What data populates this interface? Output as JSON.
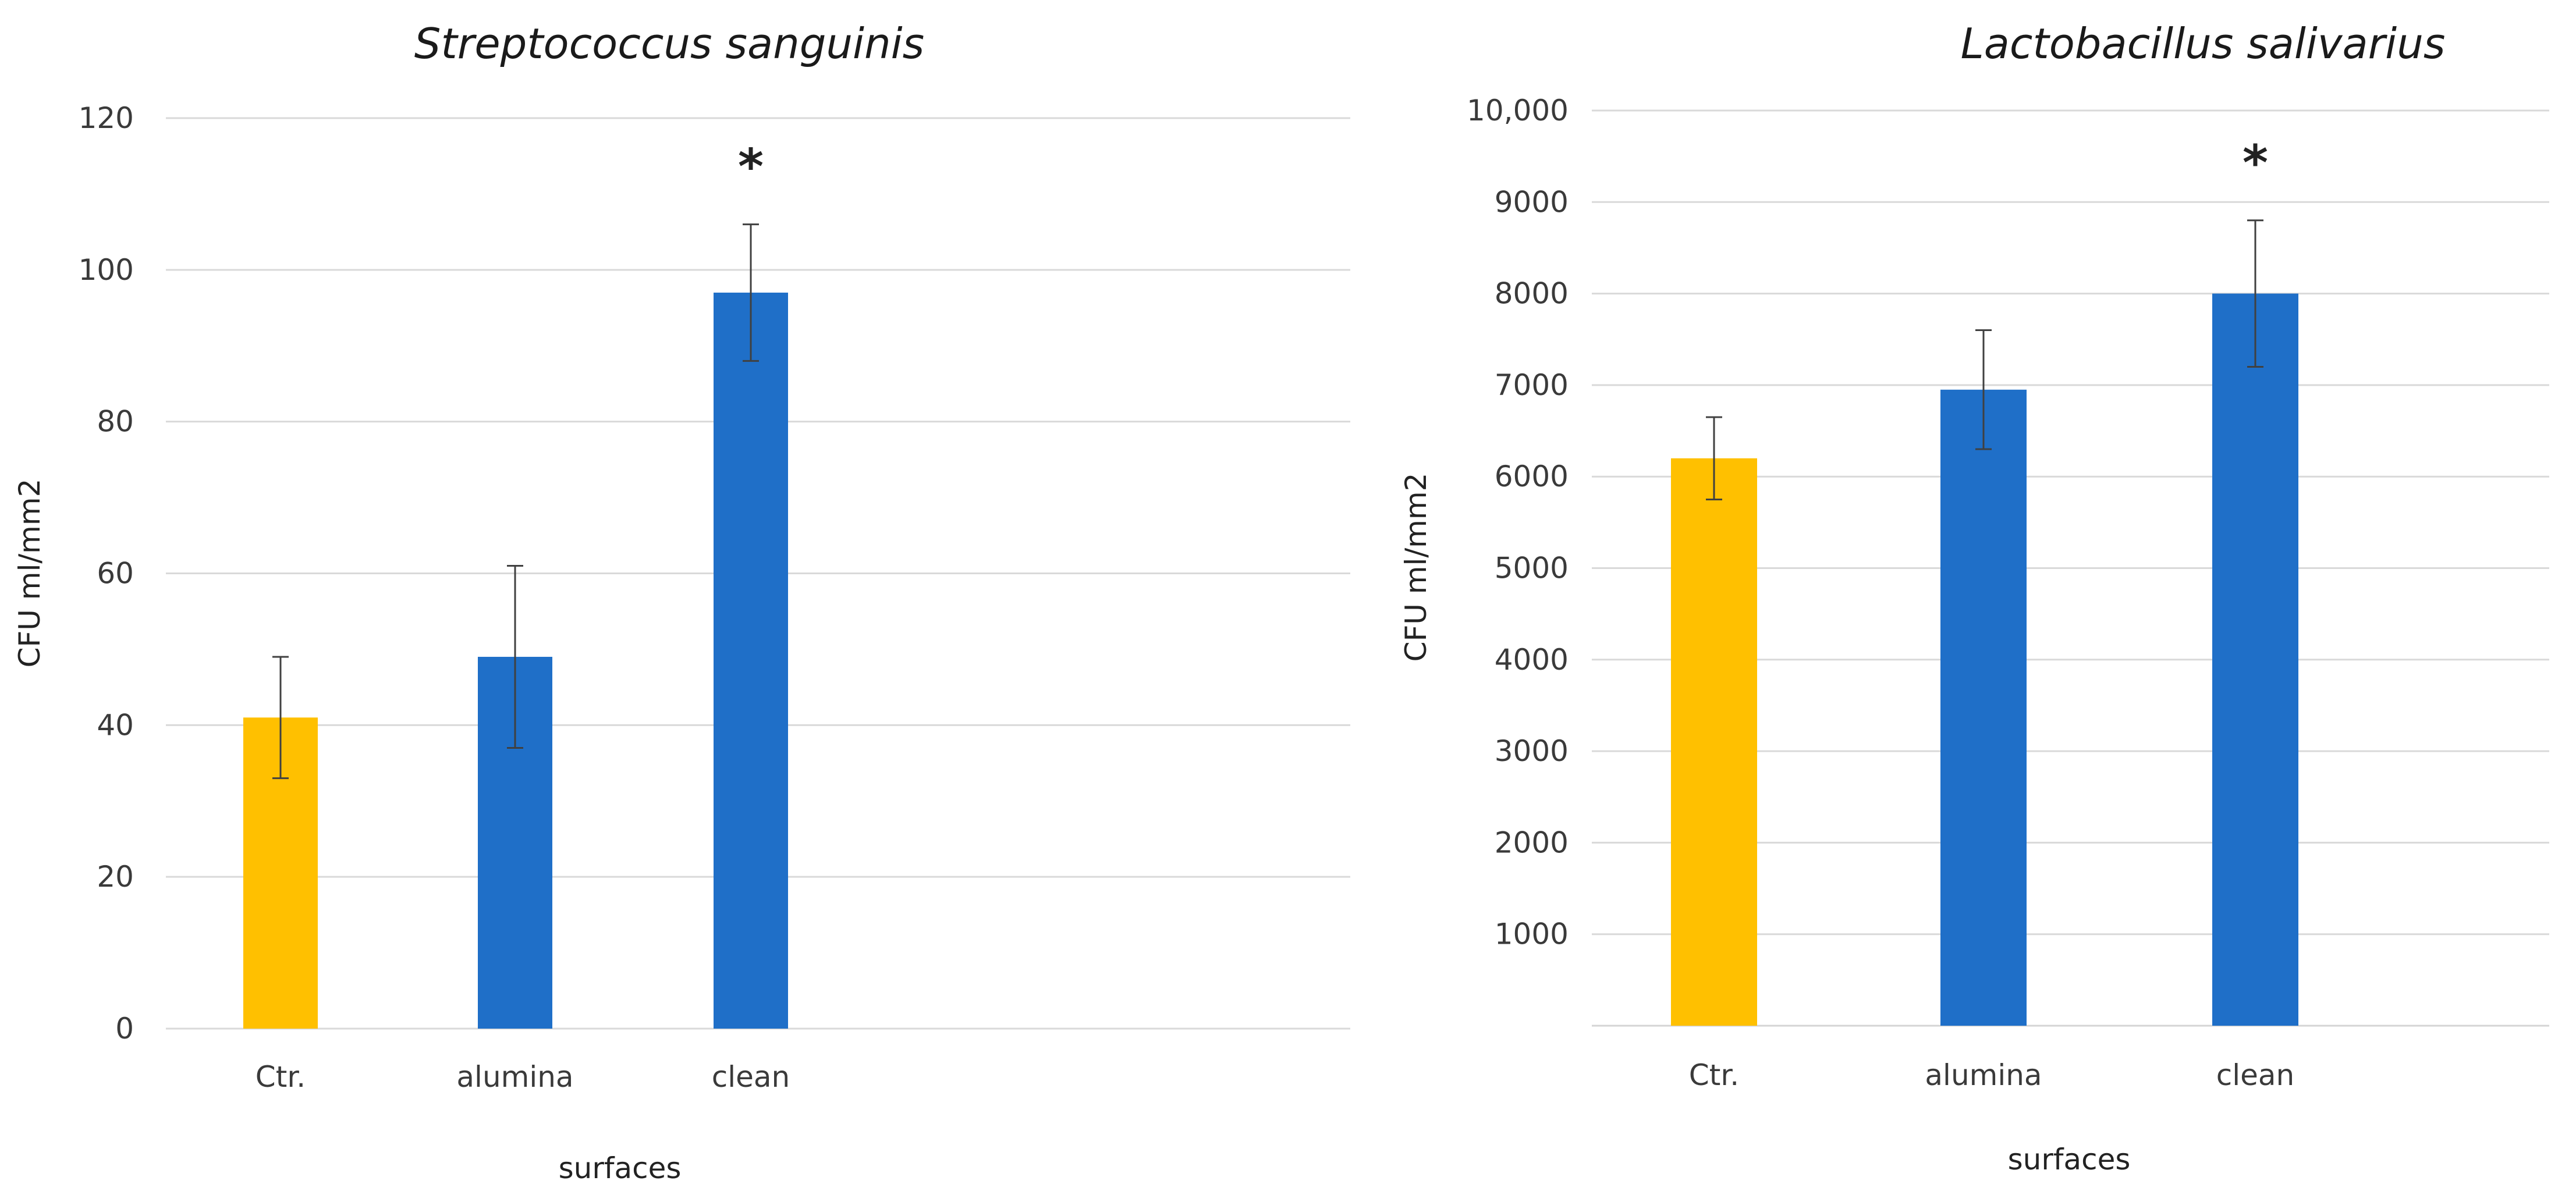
{
  "chart_data": [
    {
      "type": "bar",
      "title": "Streptococcus sanguinis",
      "xlabel": "surfaces",
      "ylabel": "CFU ml/mm2",
      "categories": [
        "Ctr.",
        "alumina",
        "clean"
      ],
      "values": [
        41,
        49,
        97
      ],
      "errors": [
        8,
        12,
        9
      ],
      "bar_colors": [
        "#FFC000",
        "#1F6FC8",
        "#1F6FC8"
      ],
      "ylim": [
        0,
        120
      ],
      "yticks": [
        0,
        20,
        40,
        60,
        80,
        100,
        120
      ],
      "ytick_labels": [
        "0",
        "20",
        "40",
        "60",
        "80",
        "100",
        "120"
      ],
      "grid": true,
      "annotations": [
        {
          "category": "clean",
          "text": "*"
        }
      ]
    },
    {
      "type": "bar",
      "title": "Lactobacillus salivarius",
      "xlabel": "surfaces",
      "ylabel": "CFU ml/mm2",
      "categories": [
        "Ctr.",
        "alumina",
        "clean"
      ],
      "values": [
        6200,
        6950,
        8000
      ],
      "errors": [
        450,
        650,
        800
      ],
      "bar_colors": [
        "#FFC000",
        "#1F6FC8",
        "#1F6FC8"
      ],
      "ylim": [
        0,
        10000
      ],
      "yticks": [
        1000,
        2000,
        3000,
        4000,
        5000,
        6000,
        7000,
        8000,
        9000,
        10000
      ],
      "ytick_labels": [
        "1000",
        "2000",
        "3000",
        "4000",
        "5000",
        "6000",
        "7000",
        "8000",
        "9000",
        "10,000"
      ],
      "grid": true,
      "annotations": [
        {
          "category": "clean",
          "text": "*"
        }
      ]
    }
  ]
}
